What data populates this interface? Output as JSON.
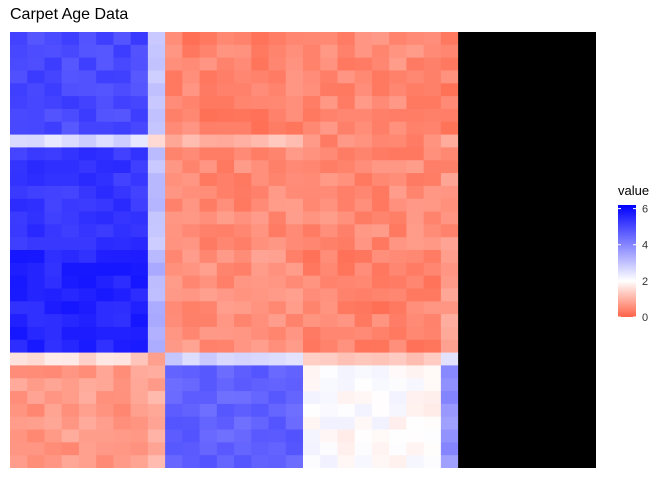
{
  "chart_data": {
    "type": "heatmap",
    "title": "Carpet Age Data",
    "xlabel": "",
    "ylabel": "",
    "legend": {
      "title": "value",
      "placement": "right",
      "ticks": [
        0,
        2,
        4,
        6
      ]
    },
    "color_scale": {
      "low": "#ff6347",
      "mid": "#ffffff",
      "high": "#0000ff",
      "midpoint": 2,
      "range": [
        0,
        6.2
      ]
    },
    "grid": false,
    "row_groups": [
      {
        "rows": 8,
        "vals": [
          5.0,
          3.0,
          0.4,
          0.5,
          0.4
        ]
      },
      {
        "rows": 1,
        "vals": [
          2.6,
          1.6,
          1.1,
          0.5,
          0.8
        ]
      },
      {
        "rows": 8,
        "vals": [
          5.3,
          3.0,
          0.5,
          0.5,
          0.6
        ]
      },
      {
        "rows": 8,
        "vals": [
          5.6,
          3.3,
          0.6,
          0.4,
          0.7
        ]
      },
      {
        "rows": 1,
        "vals": [
          1.5,
          0.8,
          2.7,
          1.2,
          2.4
        ]
      },
      {
        "rows": 8,
        "vals": [
          0.7,
          0.9,
          4.6,
          2.0,
          3.8
        ]
      }
    ],
    "col_groups": [
      {
        "cols": 8,
        "key": 0
      },
      {
        "cols": 1,
        "key": 1
      },
      {
        "cols": 8,
        "key": 2
      },
      {
        "cols": 8,
        "key": 3
      },
      {
        "cols": 1,
        "key": 4
      },
      {
        "cols": 8,
        "key": 5
      }
    ],
    "values": []
  }
}
